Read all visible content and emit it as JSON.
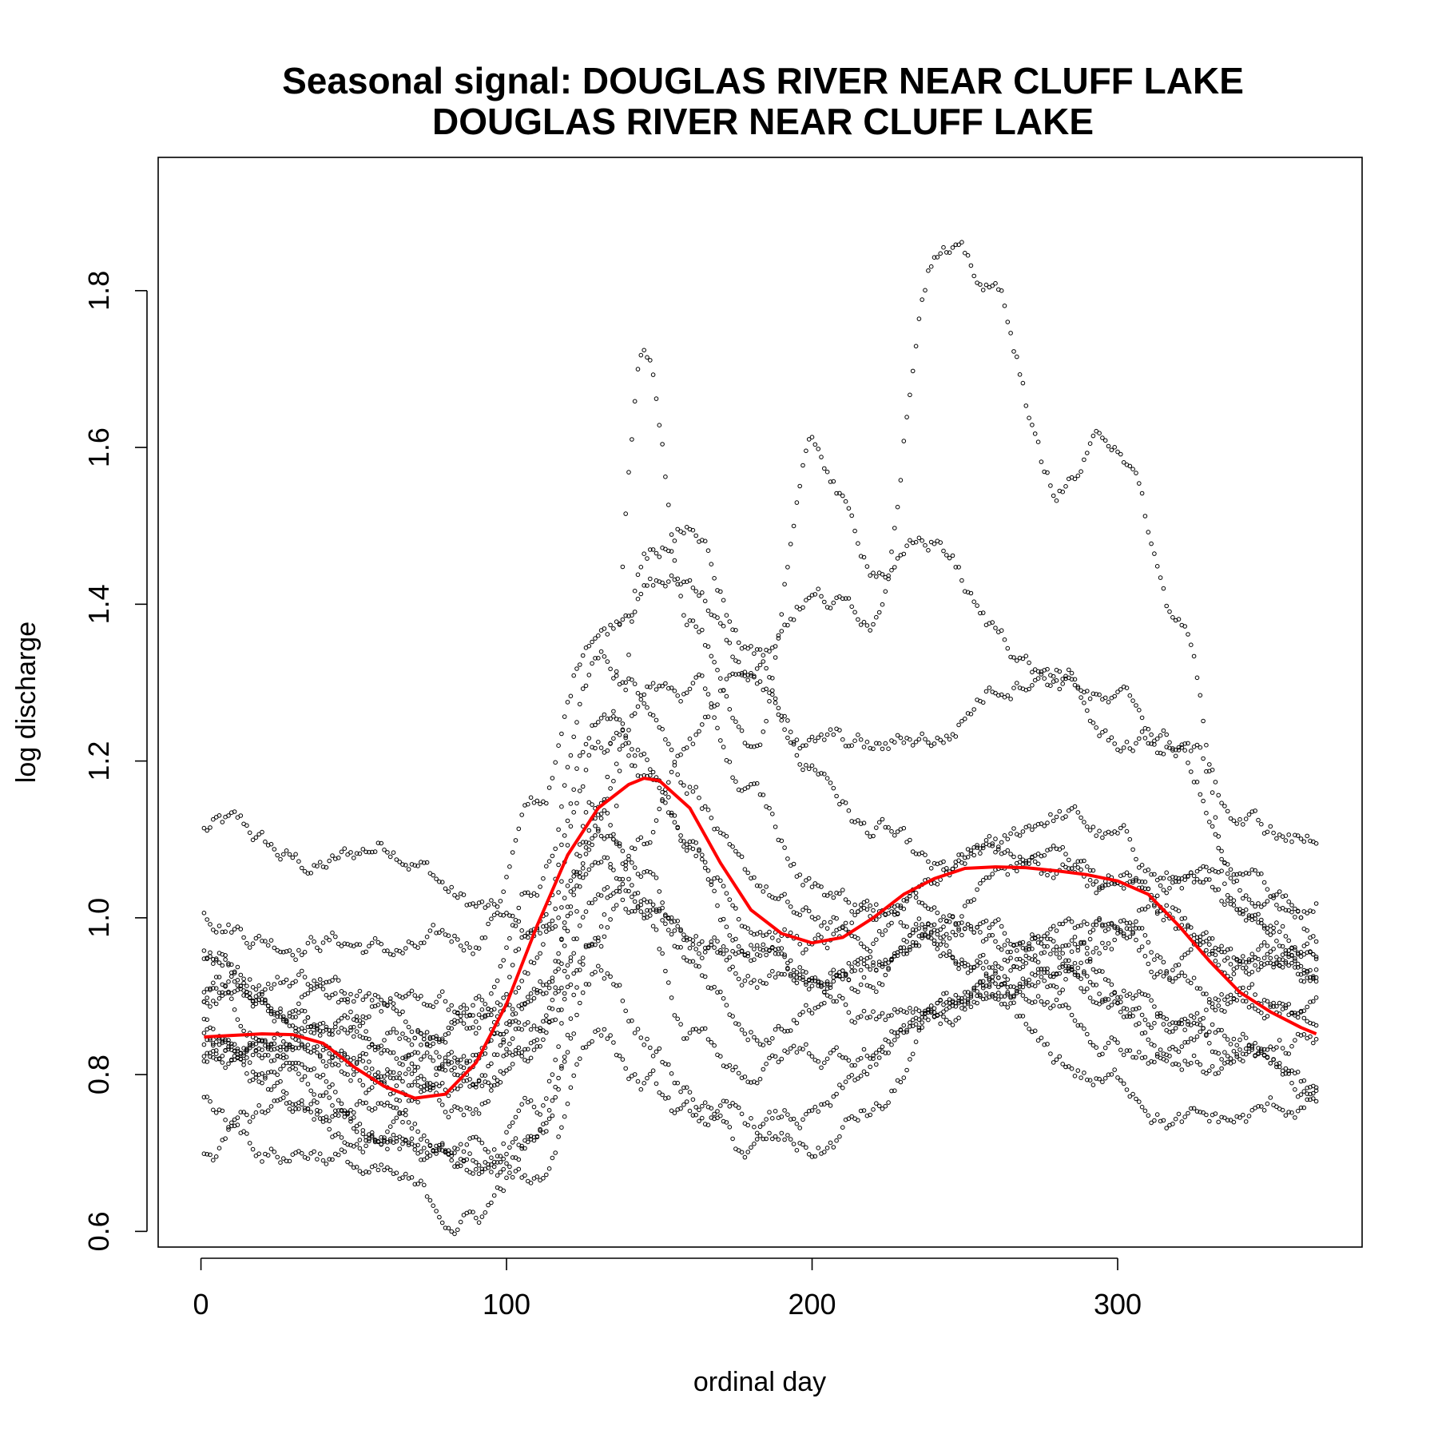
{
  "chart_data": {
    "type": "scatter",
    "title": "Seasonal signal: DOUGLAS RIVER NEAR CLUFF LAKE",
    "subtitle": "DOUGLAS RIVER NEAR CLUFF LAKE",
    "xlabel": "ordinal day",
    "ylabel": "log discharge",
    "xlim": [
      -14,
      380
    ],
    "ylim": [
      0.58,
      1.97
    ],
    "xticks": [
      0,
      100,
      200,
      300
    ],
    "yticks": [
      0.6,
      0.8,
      1.0,
      1.2,
      1.4,
      1.6,
      1.8
    ],
    "x_tick_labels": [
      "0",
      "100",
      "200",
      "300"
    ],
    "y_tick_labels": [
      "0.6",
      "0.8",
      "1.0",
      "1.2",
      "1.4",
      "1.6",
      "1.8"
    ],
    "grid": false,
    "colors": {
      "points": "#000000",
      "smooth": "#ff0000"
    },
    "series": [
      {
        "kind": "points",
        "note": "daily observations from multiple years (traces); each row gives y-values at anchor days",
        "anchor_days": [
          1,
          30,
          60,
          90,
          110,
          130,
          145,
          160,
          180,
          200,
          220,
          240,
          260,
          280,
          300,
          320,
          340,
          365
        ],
        "traces": [
          [
            1.11,
            1.07,
            1.09,
            1.02,
            0.98,
            1.05,
            1.02,
            0.99,
            0.95,
            0.93,
            0.92,
            0.96,
            0.98,
            1.0,
            0.97,
            0.95,
            0.94,
            0.93
          ],
          [
            1.0,
            0.99,
            0.95,
            0.98,
            1.13,
            1.38,
            1.44,
            1.42,
            1.3,
            1.2,
            1.1,
            1.05,
            1.08,
            1.12,
            1.1,
            1.05,
            1.0,
            0.98
          ],
          [
            0.96,
            0.92,
            0.88,
            0.86,
            1.05,
            1.33,
            1.28,
            1.18,
            1.05,
            0.98,
            0.95,
            0.98,
            1.04,
            1.08,
            1.05,
            1.0,
            0.96,
            0.92
          ],
          [
            0.92,
            0.86,
            0.82,
            0.8,
            0.96,
            1.2,
            1.22,
            1.12,
            1.0,
            0.96,
            1.0,
            1.05,
            1.1,
            1.07,
            1.02,
            0.98,
            0.95,
            0.9
          ],
          [
            0.88,
            0.85,
            0.8,
            0.78,
            0.9,
            1.12,
            1.06,
            0.96,
            0.92,
            0.94,
            0.97,
            1.0,
            0.98,
            0.96,
            0.92,
            0.9,
            0.88,
            0.86
          ],
          [
            0.85,
            0.84,
            0.84,
            0.88,
            0.86,
            1.05,
            1.0,
            0.92,
            0.88,
            0.9,
            0.93,
            0.96,
            0.95,
            0.92,
            0.88,
            0.86,
            0.85,
            0.84
          ],
          [
            0.84,
            0.8,
            0.74,
            0.7,
            0.72,
            0.92,
            0.84,
            0.78,
            0.7,
            0.69,
            0.76,
            0.85,
            0.88,
            0.82,
            0.78,
            0.74,
            0.75,
            0.75
          ],
          [
            0.81,
            0.76,
            0.7,
            0.68,
            0.66,
            0.86,
            0.8,
            0.74,
            0.72,
            0.75,
            0.8,
            0.86,
            0.9,
            0.95,
            0.9,
            0.84,
            0.8,
            0.78
          ],
          [
            0.76,
            0.71,
            0.66,
            0.62,
            0.7,
            1.0,
            1.48,
            1.5,
            1.34,
            1.22,
            1.2,
            1.24,
            1.3,
            1.32,
            1.28,
            1.22,
            1.12,
            1.11
          ],
          [
            0.72,
            0.75,
            0.73,
            0.68,
            0.76,
            1.1,
            1.7,
            1.4,
            1.2,
            1.58,
            1.46,
            1.48,
            1.35,
            1.31,
            1.22,
            1.2,
            1.05,
            1.0
          ],
          [
            0.9,
            0.86,
            0.9,
            0.88,
            0.84,
            0.97,
            1.1,
            1.25,
            1.33,
            1.42,
            1.4,
            1.85,
            1.8,
            1.55,
            1.6,
            1.38,
            1.02,
            0.97
          ],
          [
            0.95,
            0.9,
            0.87,
            0.84,
            0.9,
            1.15,
            1.3,
            1.28,
            1.15,
            1.05,
            1.0,
            0.98,
            0.94,
            0.88,
            0.86,
            0.84,
            0.82,
            0.8
          ],
          [
            0.87,
            0.83,
            0.79,
            0.82,
            1.0,
            1.25,
            1.18,
            1.08,
            0.96,
            0.9,
            0.87,
            0.89,
            0.92,
            0.96,
            1.0,
            1.04,
            1.01,
            0.96
          ],
          [
            0.82,
            0.78,
            0.77,
            0.79,
            0.85,
            1.08,
            1.0,
            0.85,
            0.8,
            0.82,
            0.85,
            0.88,
            0.9,
            0.93,
            0.96,
            0.93,
            0.9,
            0.88
          ]
        ]
      },
      {
        "kind": "line",
        "note": "seasonal smooth",
        "x": [
          1,
          10,
          20,
          30,
          40,
          50,
          60,
          70,
          80,
          90,
          100,
          110,
          120,
          130,
          140,
          145,
          150,
          160,
          170,
          180,
          190,
          200,
          210,
          220,
          230,
          240,
          250,
          260,
          270,
          280,
          290,
          300,
          310,
          320,
          330,
          340,
          350,
          360,
          365
        ],
        "y": [
          0.848,
          0.85,
          0.852,
          0.851,
          0.84,
          0.81,
          0.785,
          0.77,
          0.775,
          0.815,
          0.89,
          0.99,
          1.08,
          1.14,
          1.17,
          1.178,
          1.175,
          1.14,
          1.07,
          1.01,
          0.98,
          0.968,
          0.975,
          1.0,
          1.03,
          1.05,
          1.063,
          1.065,
          1.064,
          1.06,
          1.055,
          1.047,
          1.03,
          0.99,
          0.945,
          0.905,
          0.88,
          0.86,
          0.852
        ]
      }
    ]
  }
}
